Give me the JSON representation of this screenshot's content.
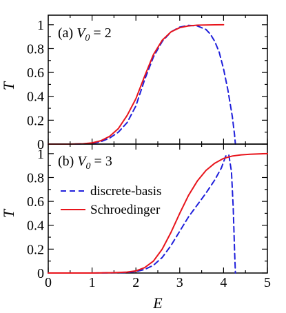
{
  "chart_data": [
    {
      "type": "line",
      "panel_label": "(a) ",
      "panel_var": "V",
      "panel_sub": "0",
      "panel_value": " = 2",
      "xlabel": "",
      "ylabel": "T",
      "xlim": [
        0,
        5
      ],
      "ylim": [
        0,
        1.08
      ],
      "yticks": [
        "0",
        "0.2",
        "0.4",
        "0.6",
        "0.8",
        "1"
      ],
      "series": [
        {
          "name": "discrete-basis",
          "color": "#1f1fdb",
          "dash": "dashed",
          "x": [
            0,
            0.5,
            0.8,
            1.0,
            1.2,
            1.4,
            1.6,
            1.8,
            2.0,
            2.2,
            2.4,
            2.6,
            2.8,
            3.0,
            3.2,
            3.4,
            3.6,
            3.7,
            3.8,
            3.9,
            4.0,
            4.1,
            4.2,
            4.25,
            4.27
          ],
          "y": [
            0,
            0,
            0.002,
            0.006,
            0.02,
            0.05,
            0.1,
            0.18,
            0.32,
            0.54,
            0.73,
            0.86,
            0.94,
            0.98,
            0.995,
            0.99,
            0.96,
            0.92,
            0.86,
            0.77,
            0.63,
            0.45,
            0.23,
            0.08,
            0
          ]
        },
        {
          "name": "Schroedinger",
          "color": "#e8141b",
          "dash": "solid",
          "x": [
            0,
            0.5,
            0.8,
            1.0,
            1.2,
            1.4,
            1.6,
            1.8,
            2.0,
            2.2,
            2.4,
            2.6,
            2.8,
            3.0,
            3.2,
            3.4,
            3.6,
            3.8,
            4.0
          ],
          "y": [
            0,
            0,
            0.003,
            0.01,
            0.028,
            0.065,
            0.13,
            0.24,
            0.38,
            0.57,
            0.75,
            0.87,
            0.94,
            0.975,
            0.99,
            0.996,
            0.998,
            0.999,
            1.0
          ]
        }
      ]
    },
    {
      "type": "line",
      "panel_label": "(b) ",
      "panel_var": "V",
      "panel_sub": "0",
      "panel_value": " = 3",
      "xlabel": "E",
      "ylabel": "T",
      "xlim": [
        0,
        5
      ],
      "ylim": [
        0,
        1.08
      ],
      "xticks": [
        "0",
        "1",
        "2",
        "3",
        "4",
        "5"
      ],
      "yticks": [
        "0",
        "0.2",
        "0.4",
        "0.6",
        "0.8",
        "1"
      ],
      "legend": [
        "discrete-basis",
        "Schroedinger"
      ],
      "series": [
        {
          "name": "discrete-basis",
          "color": "#1f1fdb",
          "dash": "dashed",
          "x": [
            0,
            1.0,
            1.5,
            1.8,
            2.0,
            2.2,
            2.4,
            2.6,
            2.8,
            3.0,
            3.2,
            3.4,
            3.6,
            3.8,
            3.95,
            4.05,
            4.12,
            4.18,
            4.22,
            4.25,
            4.27
          ],
          "y": [
            0,
            0,
            0.002,
            0.005,
            0.012,
            0.03,
            0.065,
            0.13,
            0.23,
            0.35,
            0.47,
            0.57,
            0.67,
            0.78,
            0.88,
            0.98,
            0.99,
            0.85,
            0.55,
            0.2,
            0
          ]
        },
        {
          "name": "Schroedinger",
          "color": "#e8141b",
          "dash": "solid",
          "x": [
            0,
            1.0,
            1.5,
            1.8,
            2.0,
            2.2,
            2.4,
            2.6,
            2.8,
            3.0,
            3.2,
            3.4,
            3.6,
            3.8,
            4.0,
            4.2,
            4.4,
            4.6,
            4.8,
            5.0
          ],
          "y": [
            0,
            0,
            0.003,
            0.008,
            0.018,
            0.045,
            0.1,
            0.2,
            0.34,
            0.5,
            0.65,
            0.77,
            0.86,
            0.92,
            0.96,
            0.98,
            0.99,
            0.995,
            0.998,
            1.0
          ]
        }
      ]
    }
  ]
}
